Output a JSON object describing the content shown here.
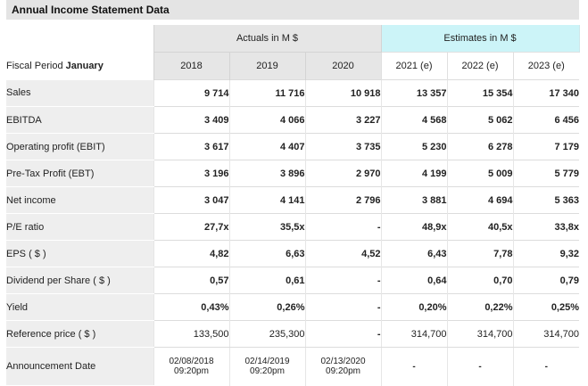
{
  "title": "Annual Income Statement Data",
  "header": {
    "actuals": "Actuals in M $",
    "estimates": "Estimates in M $",
    "fiscal_prefix": "Fiscal Period",
    "fiscal_month": "January",
    "years": [
      "2018",
      "2019",
      "2020",
      "2021 (e)",
      "2022 (e)",
      "2023 (e)"
    ]
  },
  "rows": [
    {
      "label": "Sales",
      "values": [
        "9 714",
        "11 716",
        "10 918",
        "13 357",
        "15 354",
        "17 340"
      ]
    },
    {
      "label": "EBITDA",
      "values": [
        "3 409",
        "4 066",
        "3 227",
        "4 568",
        "5 062",
        "6 456"
      ]
    },
    {
      "label": "Operating profit (EBIT)",
      "values": [
        "3 617",
        "4 407",
        "3 735",
        "5 230",
        "6 278",
        "7 179"
      ]
    },
    {
      "label": "Pre-Tax Profit (EBT)",
      "values": [
        "3 196",
        "3 896",
        "2 970",
        "4 199",
        "5 009",
        "5 779"
      ]
    },
    {
      "label": "Net income",
      "values": [
        "3 047",
        "4 141",
        "2 796",
        "3 881",
        "4 694",
        "5 363"
      ]
    },
    {
      "label": "P/E ratio",
      "values": [
        "27,7x",
        "35,5x",
        "-",
        "48,9x",
        "40,5x",
        "33,8x"
      ]
    },
    {
      "label": "EPS ( $ )",
      "values": [
        "4,82",
        "6,63",
        "4,52",
        "6,43",
        "7,78",
        "9,32"
      ]
    },
    {
      "label": "Dividend per Share ( $ )",
      "values": [
        "0,57",
        "0,61",
        "-",
        "0,64",
        "0,70",
        "0,79"
      ]
    },
    {
      "label": "Yield",
      "values": [
        "0,43%",
        "0,26%",
        "-",
        "0,20%",
        "0,22%",
        "0,25%"
      ]
    },
    {
      "label": "Reference price ( $ )",
      "values": [
        "133,500",
        "235,300",
        "-",
        "314,700",
        "314,700",
        "314,700"
      ]
    }
  ],
  "announcement": {
    "label": "Announcement Date",
    "values": [
      {
        "date": "02/08/2018",
        "time": "09:20pm"
      },
      {
        "date": "02/14/2019",
        "time": "09:20pm"
      },
      {
        "date": "02/13/2020",
        "time": "09:20pm"
      },
      {
        "date": "-",
        "time": ""
      },
      {
        "date": "-",
        "time": ""
      },
      {
        "date": "-",
        "time": ""
      }
    ]
  }
}
